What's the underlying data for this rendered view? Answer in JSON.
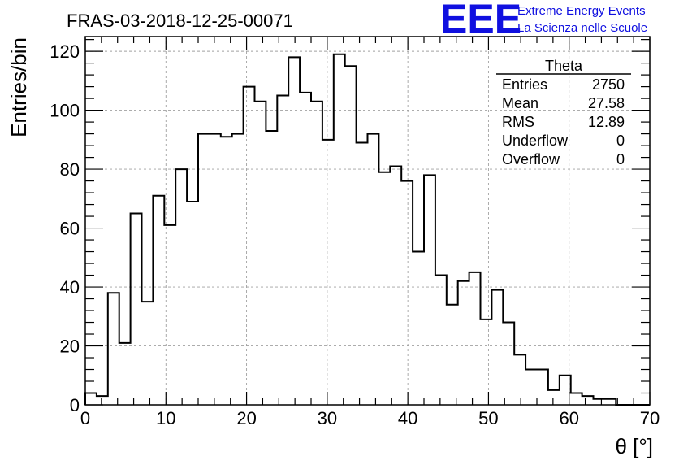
{
  "chart_data": {
    "type": "bar",
    "title": "FRAS-03-2018-12-25-00071",
    "xlabel": "θ [°]",
    "ylabel": "Entries/bin",
    "xlim": [
      0,
      70
    ],
    "ylim": [
      0,
      125
    ],
    "x_ticks": [
      0,
      10,
      20,
      30,
      40,
      50,
      60,
      70
    ],
    "y_ticks": [
      0,
      20,
      40,
      60,
      80,
      100,
      120
    ],
    "grid": true,
    "bin_width": 1.4,
    "values": [
      4,
      3,
      38,
      21,
      65,
      35,
      71,
      61,
      80,
      69,
      92,
      92,
      91,
      92,
      108,
      103,
      93,
      105,
      118,
      106,
      103,
      90,
      119,
      115,
      89,
      92,
      79,
      81,
      76,
      52,
      78,
      44,
      34,
      42,
      45,
      29,
      39,
      28,
      17,
      12,
      12,
      5,
      10,
      4,
      3,
      2,
      2,
      0,
      0,
      0
    ],
    "legend": {
      "title": "Theta",
      "entries": [
        {
          "label": "Entries",
          "value": "2750"
        },
        {
          "label": "Mean",
          "value": "27.58"
        },
        {
          "label": "RMS",
          "value": "12.89"
        },
        {
          "label": "Underflow",
          "value": "0"
        },
        {
          "label": "Overflow",
          "value": "0"
        }
      ],
      "position": "top-right"
    }
  },
  "logo": {
    "mark": "EEE",
    "line1": "Extreme Energy Events",
    "line2": "La Scienza nelle Scuole",
    "color": "#1010e0"
  }
}
